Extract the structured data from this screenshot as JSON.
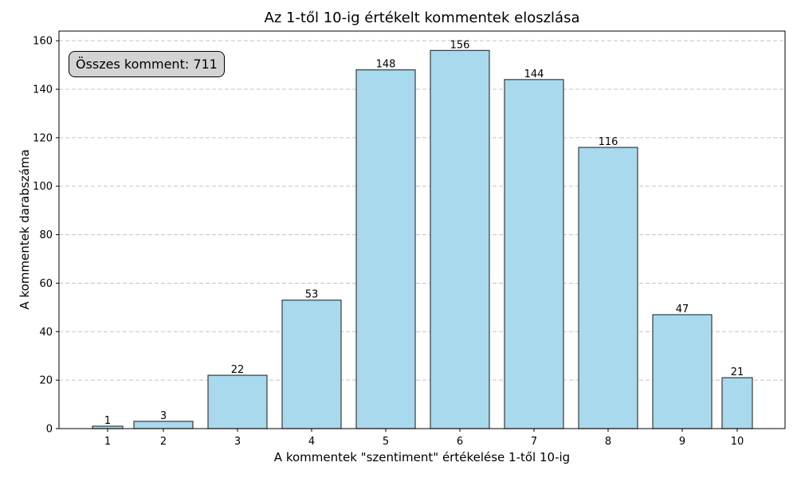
{
  "chart_data": {
    "type": "bar",
    "title": "Az 1-től 10-ig értékelt kommentek eloszlása",
    "xlabel": "A kommentek \"szentiment\" értékelése 1-től 10-ig",
    "ylabel": "A kommentek darabszáma",
    "categories": [
      "1",
      "2",
      "3",
      "4",
      "5",
      "6",
      "7",
      "8",
      "9",
      "10"
    ],
    "values": [
      1,
      3,
      22,
      53,
      148,
      156,
      144,
      116,
      47,
      21
    ],
    "ylim": [
      0,
      164
    ],
    "yticks": [
      0,
      20,
      40,
      60,
      80,
      100,
      120,
      140,
      160
    ],
    "grid": true,
    "bar_color": "#a9d9ec",
    "bar_edge_color": "#3a3a3a",
    "annotation": "Összes komment: 711"
  }
}
